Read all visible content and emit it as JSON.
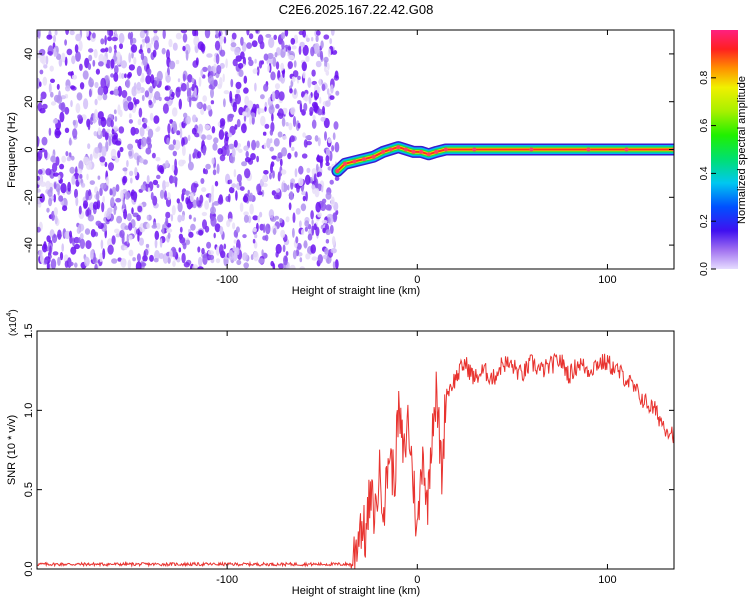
{
  "title": "C2E6.2025.167.22.42.G08",
  "colors": {
    "snr_line": "#e8332f",
    "scatter_noise": "#7a2cf0",
    "axis": "#000000"
  },
  "chart_data": [
    {
      "type": "heatmap",
      "xlabel": "Height of straight line (km)",
      "ylabel": "Frequency (Hz)",
      "xlim": [
        -200,
        135
      ],
      "ylim": [
        -50,
        50
      ],
      "xticks": [
        -100,
        0,
        100
      ],
      "yticks": [
        -40,
        -20,
        0,
        20,
        40
      ],
      "xtick_labels": [
        "-100",
        "0",
        "100"
      ],
      "ytick_labels": [
        "-40",
        "-20",
        "0",
        "20",
        "40"
      ],
      "noise_region_x": [
        -200,
        -42
      ],
      "signal_trace": {
        "x": [
          -42,
          -38,
          -33,
          -28,
          -23,
          -18,
          -14,
          -10,
          -6,
          -2,
          2,
          6,
          10,
          15,
          30,
          60,
          90,
          110,
          135
        ],
        "y": [
          -9,
          -6,
          -5,
          -4,
          -3,
          -1,
          0,
          1,
          0,
          -1,
          -1,
          -2,
          -1,
          0,
          0,
          0,
          0,
          0,
          0
        ]
      },
      "colorbar": {
        "label": "Normalized spectral amplitude",
        "range": [
          0,
          1
        ],
        "ticks": [
          0.0,
          0.2,
          0.4,
          0.6,
          0.8
        ],
        "tick_labels": [
          "0.0",
          "0.2",
          "0.4",
          "0.6",
          "0.8"
        ]
      }
    },
    {
      "type": "line",
      "xlabel": "Height of straight line (km)",
      "ylabel": "SNR (10 * v/v)",
      "y_multiplier_label": "(x10",
      "y_multiplier_exp": "4",
      "y_multiplier_close": ")",
      "xlim": [
        -200,
        135
      ],
      "ylim": [
        0,
        1.5
      ],
      "xticks": [
        -100,
        0,
        100
      ],
      "yticks": [
        0.0,
        0.5,
        1.0,
        1.5
      ],
      "xtick_labels": [
        "-100",
        "0",
        "100"
      ],
      "ytick_labels": [
        "0.0",
        "0.5",
        "1.0",
        "1.5"
      ],
      "series": [
        {
          "x": [
            -200,
            -150,
            -100,
            -50,
            -35,
            -32,
            -30,
            -27,
            -25,
            -22,
            -20,
            -17,
            -15,
            -12,
            -10,
            -7,
            -5,
            -2,
            0,
            3,
            5,
            8,
            10,
            13,
            15,
            20,
            25,
            30,
            35,
            40,
            45,
            50,
            55,
            60,
            65,
            70,
            75,
            80,
            85,
            90,
            95,
            100,
            105,
            110,
            115,
            120,
            125,
            130,
            135
          ],
          "y": [
            0.03,
            0.03,
            0.03,
            0.03,
            0.03,
            0.15,
            0.3,
            0.2,
            0.45,
            0.35,
            0.6,
            0.4,
            0.75,
            0.55,
            1.0,
            0.7,
            0.95,
            0.55,
            0.2,
            0.8,
            0.35,
            0.95,
            1.1,
            0.6,
            1.1,
            1.2,
            1.3,
            1.2,
            1.25,
            1.2,
            1.3,
            1.28,
            1.22,
            1.3,
            1.25,
            1.28,
            1.32,
            1.22,
            1.3,
            1.25,
            1.3,
            1.3,
            1.25,
            1.2,
            1.12,
            1.05,
            1.0,
            0.9,
            0.85
          ]
        }
      ]
    }
  ]
}
